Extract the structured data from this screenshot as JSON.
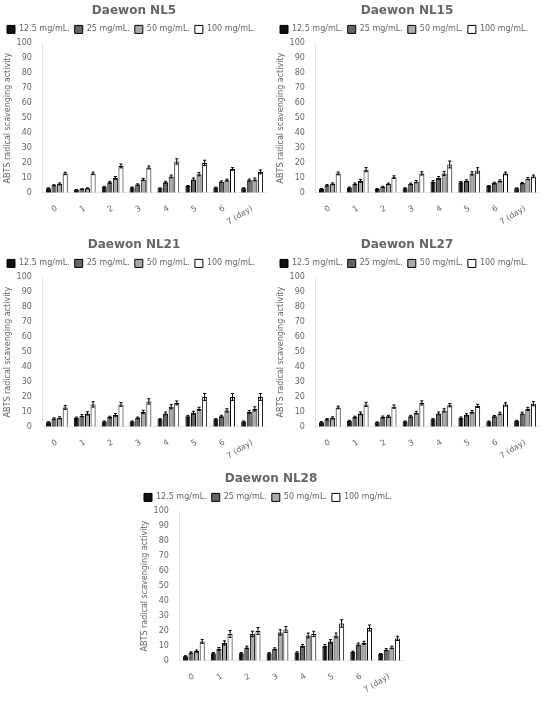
{
  "chart_data": [
    {
      "type": "bar",
      "title": "Daewon NL5",
      "ylabel": "ABTS radical scavenging activity",
      "categories": [
        "0",
        "1",
        "2",
        "3",
        "4",
        "5",
        "6",
        "7 (day)"
      ],
      "ylim": [
        0,
        100
      ],
      "yticks": [
        0,
        10,
        20,
        30,
        40,
        50,
        60,
        70,
        80,
        90,
        100
      ],
      "grid": false,
      "legend": "upper left",
      "series": [
        {
          "name": "12.5 mg/mL.",
          "color": "#111111",
          "values": [
            3.0,
            2.0,
            4.0,
            3.5,
            3.0,
            4.5,
            3.5,
            3.0
          ],
          "errors": [
            0.3,
            0.2,
            0.4,
            0.4,
            0.3,
            0.4,
            0.3,
            0.4
          ]
        },
        {
          "name": "25 mg/mL.",
          "color": "#666666",
          "values": [
            5.0,
            2.5,
            7.0,
            5.5,
            7.0,
            9.0,
            7.5,
            8.5
          ],
          "errors": [
            0.4,
            0.3,
            0.7,
            0.5,
            0.7,
            0.9,
            0.5,
            0.7
          ]
        },
        {
          "name": "50 mg/mL.",
          "color": "#aaaaaa",
          "values": [
            6.0,
            3.0,
            10.0,
            9.0,
            11.0,
            12.5,
            8.5,
            9.0
          ],
          "errors": [
            0.6,
            0.3,
            0.9,
            0.7,
            0.9,
            1.1,
            0.7,
            0.9
          ]
        },
        {
          "name": "100 mg/mL.",
          "color": "#ffffff",
          "values": [
            13.0,
            13.0,
            18.0,
            17.0,
            21.0,
            20.0,
            16.0,
            14.0
          ],
          "errors": [
            0.8,
            0.8,
            1.3,
            1.0,
            1.8,
            1.8,
            0.9,
            1.3
          ]
        }
      ]
    },
    {
      "type": "bar",
      "title": "Daewon NL15",
      "ylabel": "ABTS radical scavenging activity",
      "categories": [
        "0",
        "1",
        "2",
        "3",
        "4",
        "5",
        "6",
        "7 (day)"
      ],
      "ylim": [
        0,
        100
      ],
      "yticks": [
        0,
        10,
        20,
        30,
        40,
        50,
        60,
        70,
        80,
        90,
        100
      ],
      "grid": false,
      "legend": "upper left",
      "series": [
        {
          "name": "12.5 mg/mL.",
          "color": "#111111",
          "values": [
            2.5,
            3.5,
            2.5,
            3.0,
            7.5,
            7.0,
            4.5,
            3.0
          ],
          "errors": [
            0.4,
            0.4,
            0.3,
            0.4,
            0.7,
            0.6,
            0.4,
            0.3
          ]
        },
        {
          "name": "25 mg/mL.",
          "color": "#666666",
          "values": [
            5.0,
            6.0,
            4.0,
            6.0,
            10.0,
            8.0,
            6.5,
            6.5
          ],
          "errors": [
            0.5,
            0.6,
            0.4,
            0.5,
            0.9,
            0.7,
            0.6,
            0.5
          ]
        },
        {
          "name": "50 mg/mL.",
          "color": "#aaaaaa",
          "values": [
            6.0,
            8.0,
            6.0,
            7.5,
            13.0,
            13.0,
            8.0,
            9.5
          ],
          "errors": [
            0.6,
            0.9,
            0.5,
            0.7,
            1.4,
            1.1,
            0.7,
            0.7
          ]
        },
        {
          "name": "100 mg/mL.",
          "color": "#ffffff",
          "values": [
            13.0,
            15.5,
            10.5,
            13.0,
            19.0,
            15.0,
            13.0,
            11.0
          ],
          "errors": [
            0.9,
            1.4,
            0.9,
            1.1,
            2.3,
            1.8,
            0.9,
            0.9
          ]
        }
      ]
    },
    {
      "type": "bar",
      "title": "Daewon NL21",
      "ylabel": "ABTS radical scavenging activity",
      "categories": [
        "0",
        "1",
        "2",
        "3",
        "4",
        "5",
        "6",
        "7 (day)"
      ],
      "ylim": [
        0,
        100
      ],
      "yticks": [
        0,
        10,
        20,
        30,
        40,
        50,
        60,
        70,
        80,
        90,
        100
      ],
      "grid": false,
      "legend": "upper left",
      "series": [
        {
          "name": "12.5 mg/mL.",
          "color": "#111111",
          "values": [
            3.0,
            6.0,
            3.5,
            3.5,
            5.0,
            7.0,
            5.0,
            3.5
          ],
          "errors": [
            0.4,
            0.5,
            0.4,
            0.4,
            0.5,
            0.7,
            0.5,
            0.4
          ]
        },
        {
          "name": "25 mg/mL.",
          "color": "#666666",
          "values": [
            5.5,
            7.5,
            6.5,
            6.0,
            9.0,
            9.5,
            7.0,
            10.0
          ],
          "errors": [
            0.5,
            0.7,
            0.6,
            0.5,
            0.9,
            0.9,
            0.7,
            0.9
          ]
        },
        {
          "name": "50 mg/mL.",
          "color": "#aaaaaa",
          "values": [
            6.0,
            9.0,
            8.0,
            10.0,
            13.5,
            12.0,
            11.0,
            12.0
          ],
          "errors": [
            0.7,
            1.1,
            0.9,
            1.1,
            1.4,
            1.1,
            1.1,
            1.4
          ]
        },
        {
          "name": "100 mg/mL.",
          "color": "#ffffff",
          "values": [
            13.0,
            15.0,
            15.0,
            17.0,
            16.0,
            20.0,
            20.0,
            20.0
          ],
          "errors": [
            1.3,
            1.8,
            1.3,
            1.8,
            1.3,
            2.3,
            2.3,
            2.3
          ]
        }
      ]
    },
    {
      "type": "bar",
      "title": "Daewon NL27",
      "ylabel": "ABTS radical scavenging activity",
      "categories": [
        "0",
        "1",
        "2",
        "3",
        "4",
        "5",
        "6",
        "7 (day)"
      ],
      "ylim": [
        0,
        100
      ],
      "yticks": [
        0,
        10,
        20,
        30,
        40,
        50,
        60,
        70,
        80,
        90,
        100
      ],
      "grid": false,
      "legend": "upper left",
      "series": [
        {
          "name": "12.5 mg/mL.",
          "color": "#111111",
          "values": [
            3.0,
            4.0,
            3.0,
            3.5,
            5.0,
            6.0,
            3.5,
            4.0
          ],
          "errors": [
            0.4,
            0.4,
            0.3,
            0.4,
            0.5,
            0.6,
            0.4,
            0.4
          ]
        },
        {
          "name": "25 mg/mL.",
          "color": "#666666",
          "values": [
            5.0,
            6.5,
            6.5,
            7.0,
            9.0,
            8.0,
            7.0,
            9.0
          ],
          "errors": [
            0.5,
            0.6,
            0.7,
            0.7,
            0.9,
            0.7,
            0.6,
            0.8
          ]
        },
        {
          "name": "50 mg/mL.",
          "color": "#aaaaaa",
          "values": [
            6.0,
            9.0,
            7.0,
            9.5,
            11.0,
            10.0,
            9.0,
            12.0
          ],
          "errors": [
            0.7,
            0.9,
            0.7,
            0.9,
            1.1,
            0.9,
            0.8,
            1.1
          ]
        },
        {
          "name": "100 mg/mL.",
          "color": "#ffffff",
          "values": [
            13.0,
            15.0,
            13.5,
            16.0,
            14.5,
            14.0,
            15.0,
            15.5
          ],
          "errors": [
            0.9,
            1.4,
            1.1,
            1.4,
            1.1,
            1.1,
            1.1,
            1.4
          ]
        }
      ]
    },
    {
      "type": "bar",
      "title": "Daewon NL28",
      "ylabel": "ABTS radical scavenging activity",
      "categories": [
        "0",
        "1",
        "2",
        "3",
        "4",
        "5",
        "6",
        "7 (day)"
      ],
      "ylim": [
        0,
        100
      ],
      "yticks": [
        0,
        10,
        20,
        30,
        40,
        50,
        60,
        70,
        80,
        90,
        100
      ],
      "grid": false,
      "legend": "upper left",
      "series": [
        {
          "name": "12.5 mg/mL.",
          "color": "#111111",
          "values": [
            3.0,
            5.0,
            5.0,
            5.0,
            5.5,
            10.0,
            6.0,
            4.5
          ],
          "errors": [
            0.4,
            0.6,
            0.5,
            0.5,
            0.6,
            0.9,
            0.5,
            0.4
          ]
        },
        {
          "name": "25 mg/mL.",
          "color": "#666666",
          "values": [
            5.5,
            8.0,
            9.0,
            8.0,
            10.0,
            13.0,
            11.0,
            7.5
          ],
          "errors": [
            0.5,
            0.9,
            0.8,
            0.7,
            0.9,
            1.2,
            0.9,
            0.7
          ]
        },
        {
          "name": "50 mg/mL.",
          "color": "#aaaaaa",
          "values": [
            6.5,
            12.0,
            18.0,
            19.0,
            17.0,
            17.0,
            12.0,
            9.0
          ],
          "errors": [
            0.7,
            1.4,
            1.8,
            1.8,
            1.6,
            1.6,
            1.1,
            0.8
          ]
        },
        {
          "name": "100 mg/mL.",
          "color": "#ffffff",
          "values": [
            13.0,
            18.0,
            20.0,
            21.0,
            18.0,
            25.0,
            22.0,
            15.0
          ],
          "errors": [
            1.3,
            2.3,
            2.3,
            2.0,
            1.8,
            2.5,
            2.0,
            1.4
          ]
        }
      ]
    }
  ]
}
